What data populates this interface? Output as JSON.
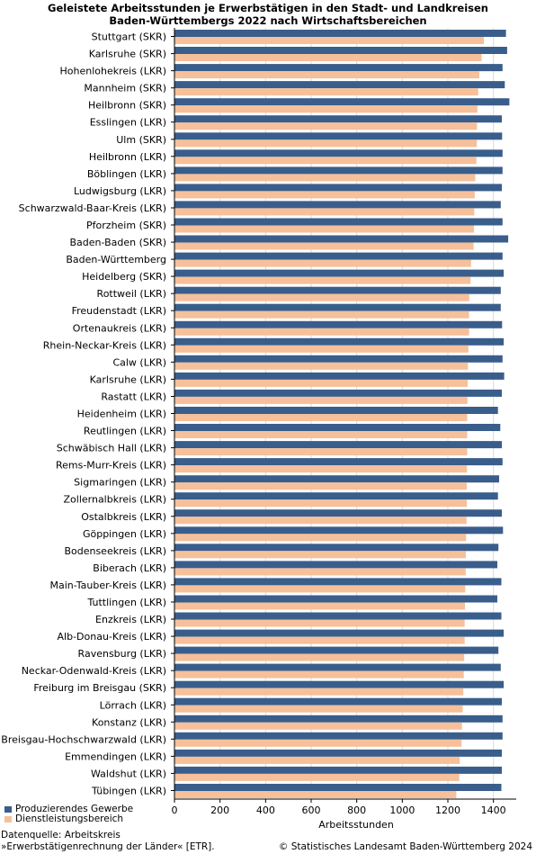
{
  "title_line1": "Geleistete Arbeitsstunden je Erwerbstätigen in den Stadt- und Landkreisen",
  "title_line2": "Baden-Württembergs 2022 nach Wirtschaftsbereichen",
  "source_line1": "Datenquelle: Arbeitskreis",
  "source_line2": "»Erwerbstätigenrechnung der Länder« [ETR].",
  "copyright": "© Statistisches Landesamt Baden-Württemberg 2024",
  "colors": {
    "series1": "#3a5e8c",
    "series2": "#f5c09a",
    "grid": "#d9d9d9",
    "axis": "#000000"
  },
  "chart_data": {
    "type": "bar",
    "orientation": "horizontal",
    "title": "Geleistete Arbeitsstunden je Erwerbstätigen in den Stadt- und Landkreisen Baden-Württembergs 2022 nach Wirtschaftsbereichen",
    "xlabel": "Arbeitsstunden",
    "ylabel": "",
    "xlim": [
      0,
      1500
    ],
    "xticks": [
      0,
      200,
      400,
      600,
      800,
      1000,
      1200,
      1400
    ],
    "grid": true,
    "legend_position": "bottom-left",
    "categories": [
      "Stuttgart (SKR)",
      "Karlsruhe (SKR)",
      "Hohenlohekreis (LKR)",
      "Mannheim (SKR)",
      "Heilbronn (SKR)",
      "Esslingen (LKR)",
      "Ulm (SKR)",
      "Heilbronn (LKR)",
      "Böblingen (LKR)",
      "Ludwigsburg (LKR)",
      "Schwarzwald-Baar-Kreis  (LKR)",
      "Pforzheim (SKR)",
      "Baden-Baden (SKR)",
      "Baden-Württemberg",
      "Heidelberg (SKR)",
      "Rottweil (LKR)",
      "Freudenstadt (LKR)",
      "Ortenaukreis (LKR)",
      "Rhein-Neckar-Kreis (LKR)",
      "Calw (LKR)",
      "Karlsruhe (LKR)",
      "Rastatt (LKR)",
      "Heidenheim (LKR)",
      "Reutlingen (LKR)",
      "Schwäbisch Hall (LKR)",
      "Rems-Murr-Kreis (LKR)",
      "Sigmaringen (LKR)",
      "Zollernalbkreis (LKR)",
      "Ostalbkreis (LKR)",
      "Göppingen (LKR)",
      "Bodenseekreis (LKR)",
      "Biberach (LKR)",
      "Main-Tauber-Kreis (LKR)",
      "Tuttlingen (LKR)",
      "Enzkreis (LKR)",
      "Alb-Donau-Kreis (LKR)",
      "Ravensburg (LKR)",
      "Neckar-Odenwald-Kreis (LKR)",
      "Freiburg im Breisgau (SKR)",
      "Lörrach (LKR)",
      "Konstanz (LKR)",
      "Breisgau-Hochschwarzwald (LKR)",
      "Emmendingen (LKR)",
      "Waldshut (LKR)",
      "Tübingen (LKR)"
    ],
    "series": [
      {
        "name": "Produzierendes Gewerbe",
        "values": [
          1455,
          1460,
          1440,
          1450,
          1470,
          1437,
          1438,
          1440,
          1440,
          1437,
          1432,
          1440,
          1465,
          1440,
          1445,
          1432,
          1432,
          1438,
          1445,
          1440,
          1447,
          1437,
          1420,
          1430,
          1437,
          1440,
          1425,
          1420,
          1437,
          1442,
          1422,
          1417,
          1435,
          1417,
          1435,
          1445,
          1422,
          1432,
          1445,
          1437,
          1440,
          1440,
          1437,
          1437,
          1435
        ]
      },
      {
        "name": "Dienstleistungsbereich",
        "values": [
          1358,
          1348,
          1338,
          1333,
          1330,
          1328,
          1327,
          1325,
          1320,
          1318,
          1316,
          1315,
          1313,
          1302,
          1300,
          1294,
          1293,
          1293,
          1290,
          1288,
          1287,
          1286,
          1285,
          1285,
          1285,
          1284,
          1283,
          1283,
          1282,
          1280,
          1279,
          1278,
          1276,
          1275,
          1274,
          1274,
          1272,
          1270,
          1268,
          1265,
          1262,
          1260,
          1252,
          1250,
          1237
        ]
      }
    ]
  }
}
